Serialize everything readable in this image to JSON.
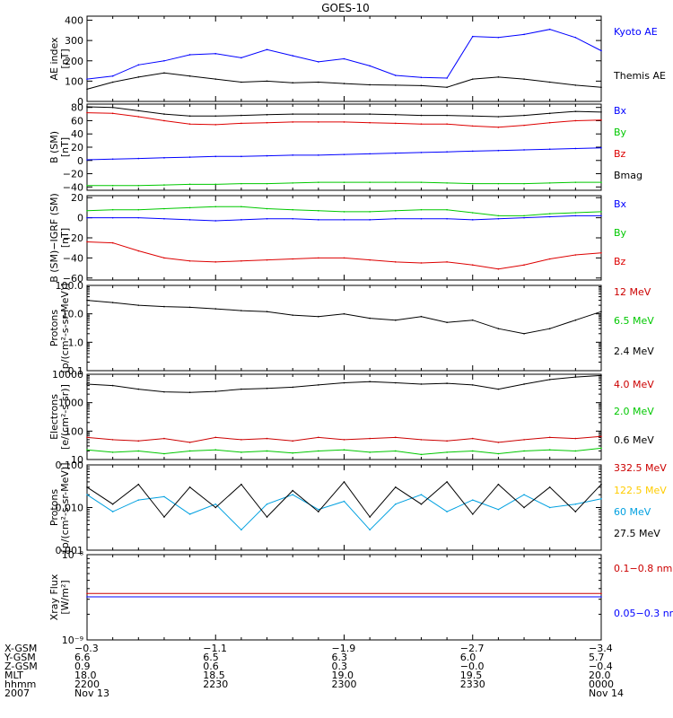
{
  "title": "GOES-10",
  "chart_data": [
    {
      "type": "line",
      "ylabel": [
        "AE index",
        "[nT]"
      ],
      "yscale": "linear",
      "ylim": [
        0,
        420
      ],
      "yticks": [
        {
          "v": 400,
          "t": "400"
        },
        {
          "v": 300,
          "t": "300"
        },
        {
          "v": 200,
          "t": "200"
        },
        {
          "v": 100,
          "t": "100"
        },
        {
          "v": 0,
          "t": "0"
        }
      ],
      "x": [
        22.0,
        22.1,
        22.2,
        22.3,
        22.4,
        22.5,
        22.6,
        22.7,
        22.8,
        22.9,
        23.0,
        23.1,
        23.2,
        23.3,
        23.4,
        23.5,
        23.6,
        23.7,
        23.8,
        23.9,
        24.0
      ],
      "series": [
        {
          "name": "Kyoto AE",
          "color": "#0000ff",
          "values": [
            110,
            125,
            180,
            200,
            230,
            235,
            215,
            255,
            225,
            195,
            210,
            175,
            128,
            118,
            115,
            320,
            315,
            330,
            355,
            315,
            250
          ]
        },
        {
          "name": "Themis AE",
          "color": "#000000",
          "values": [
            60,
            95,
            120,
            140,
            125,
            110,
            95,
            100,
            92,
            95,
            88,
            82,
            80,
            78,
            70,
            110,
            120,
            110,
            95,
            80,
            70
          ]
        }
      ]
    },
    {
      "type": "line",
      "ylabel": [
        "B (SM)",
        "[nT]"
      ],
      "yscale": "linear",
      "ylim": [
        -45,
        85
      ],
      "yticks": [
        {
          "v": 80,
          "t": "80"
        },
        {
          "v": 60,
          "t": "60"
        },
        {
          "v": 40,
          "t": "40"
        },
        {
          "v": 20,
          "t": "20"
        },
        {
          "v": 0,
          "t": "0"
        },
        {
          "v": -20,
          "t": "−20"
        },
        {
          "v": -40,
          "t": "−40"
        }
      ],
      "x": [
        22.0,
        22.1,
        22.2,
        22.3,
        22.4,
        22.5,
        22.6,
        22.7,
        22.8,
        22.9,
        23.0,
        23.1,
        23.2,
        23.3,
        23.4,
        23.5,
        23.6,
        23.7,
        23.8,
        23.9,
        24.0
      ],
      "series": [
        {
          "name": "Bx",
          "color": "#0000ff",
          "values": [
            1,
            2,
            3,
            4,
            5,
            6,
            6,
            7,
            8,
            8,
            9,
            10,
            11,
            12,
            13,
            14,
            15,
            16,
            17,
            18,
            19
          ]
        },
        {
          "name": "By",
          "color": "#00c800",
          "values": [
            -38,
            -38,
            -38,
            -37,
            -36,
            -36,
            -35,
            -35,
            -34,
            -33,
            -33,
            -33,
            -33,
            -33,
            -34,
            -35,
            -35,
            -35,
            -34,
            -33,
            -33
          ]
        },
        {
          "name": "Bz",
          "color": "#dd0000",
          "values": [
            72,
            71,
            66,
            60,
            55,
            54,
            56,
            57,
            58,
            58,
            58,
            57,
            56,
            55,
            55,
            52,
            50,
            53,
            57,
            60,
            61
          ]
        },
        {
          "name": "Bmag",
          "color": "#000000",
          "values": [
            81,
            80,
            75,
            70,
            67,
            67,
            68,
            69,
            70,
            70,
            70,
            70,
            69,
            68,
            68,
            67,
            66,
            68,
            71,
            74,
            73
          ]
        }
      ]
    },
    {
      "type": "line",
      "ylabel": [
        "B (SM)−IGRF (SM)",
        "[nT]"
      ],
      "yscale": "linear",
      "ylim": [
        -62,
        22
      ],
      "yticks": [
        {
          "v": 20,
          "t": "20"
        },
        {
          "v": 0,
          "t": "0"
        },
        {
          "v": -20,
          "t": "−20"
        },
        {
          "v": -40,
          "t": "−40"
        },
        {
          "v": -60,
          "t": "−60"
        }
      ],
      "x": [
        22.0,
        22.1,
        22.2,
        22.3,
        22.4,
        22.5,
        22.6,
        22.7,
        22.8,
        22.9,
        23.0,
        23.1,
        23.2,
        23.3,
        23.4,
        23.5,
        23.6,
        23.7,
        23.8,
        23.9,
        24.0
      ],
      "series": [
        {
          "name": "Bx",
          "color": "#0000ff",
          "values": [
            0,
            0,
            0,
            -1,
            -2,
            -3,
            -2,
            -1,
            -1,
            -2,
            -2,
            -2,
            -1,
            -1,
            -1,
            -2,
            -1,
            0,
            1,
            2,
            2
          ]
        },
        {
          "name": "By",
          "color": "#00c800",
          "values": [
            7,
            8,
            8,
            9,
            10,
            11,
            11,
            9,
            8,
            7,
            6,
            6,
            7,
            8,
            8,
            5,
            2,
            2,
            4,
            5,
            6
          ]
        },
        {
          "name": "Bz",
          "color": "#dd0000",
          "values": [
            -24,
            -25,
            -33,
            -40,
            -43,
            -44,
            -43,
            -42,
            -41,
            -40,
            -40,
            -42,
            -44,
            -45,
            -44,
            -47,
            -51,
            -47,
            -41,
            -37,
            -35
          ]
        }
      ]
    },
    {
      "type": "line",
      "ylabel": [
        "Protons",
        "[p/(cm²-s-sr-MeV)]"
      ],
      "yscale": "log",
      "ylim": [
        0.1,
        100.0
      ],
      "yticks": [
        {
          "v": 100.0,
          "t": "100.0"
        },
        {
          "v": 10.0,
          "t": "10.0"
        },
        {
          "v": 1.0,
          "t": "1.0"
        },
        {
          "v": 0.1,
          "t": "0.1"
        }
      ],
      "x": [
        22.0,
        22.1,
        22.2,
        22.3,
        22.4,
        22.5,
        22.6,
        22.7,
        22.8,
        22.9,
        23.0,
        23.1,
        23.2,
        23.3,
        23.4,
        23.5,
        23.6,
        23.7,
        23.8,
        23.9,
        24.0
      ],
      "series": [
        {
          "name": "12 MeV",
          "color": "#cc0000",
          "values": [
            null,
            null,
            null,
            null,
            null,
            null,
            null,
            null,
            null,
            null,
            null,
            null,
            null,
            null,
            null,
            null,
            null,
            null,
            null,
            null,
            null
          ]
        },
        {
          "name": "6.5 MeV",
          "color": "#00c800",
          "values": [
            null,
            null,
            null,
            null,
            null,
            null,
            null,
            null,
            null,
            null,
            null,
            null,
            null,
            null,
            null,
            null,
            null,
            null,
            null,
            null,
            null
          ]
        },
        {
          "name": "2.4 MeV",
          "color": "#000000",
          "values": [
            30,
            25,
            20,
            18,
            17,
            15,
            13,
            12,
            9,
            8,
            10,
            7,
            6,
            8,
            5,
            6,
            3,
            2,
            3,
            6,
            12
          ]
        }
      ]
    },
    {
      "type": "line",
      "ylabel": [
        "Electrons",
        "[e/(cm²-s-sr)]"
      ],
      "yscale": "log",
      "ylim": [
        10,
        10000
      ],
      "yticks": [
        {
          "v": 10000,
          "t": "10000"
        },
        {
          "v": 1000,
          "t": "1000"
        },
        {
          "v": 100,
          "t": "100"
        },
        {
          "v": 10,
          "t": "10"
        }
      ],
      "x": [
        22.0,
        22.1,
        22.2,
        22.3,
        22.4,
        22.5,
        22.6,
        22.7,
        22.8,
        22.9,
        23.0,
        23.1,
        23.2,
        23.3,
        23.4,
        23.5,
        23.6,
        23.7,
        23.8,
        23.9,
        24.0
      ],
      "series": [
        {
          "name": "4.0 MeV",
          "color": "#cc0000",
          "values": [
            60,
            50,
            45,
            55,
            40,
            60,
            50,
            55,
            45,
            60,
            50,
            55,
            60,
            50,
            45,
            55,
            40,
            50,
            60,
            55,
            65
          ]
        },
        {
          "name": "2.0 MeV",
          "color": "#00c800",
          "values": [
            22,
            18,
            20,
            16,
            20,
            22,
            18,
            20,
            17,
            20,
            22,
            18,
            20,
            15,
            18,
            20,
            16,
            20,
            22,
            20,
            25
          ]
        },
        {
          "name": "0.6 MeV",
          "color": "#000000",
          "values": [
            4500,
            4000,
            3000,
            2400,
            2300,
            2500,
            3000,
            3200,
            3500,
            4200,
            5000,
            5500,
            5000,
            4500,
            4800,
            4200,
            3000,
            4500,
            6500,
            8000,
            9000
          ]
        }
      ]
    },
    {
      "type": "line",
      "ylabel": [
        "Protons",
        "[p/(cm²-s-sr-MeV)]"
      ],
      "yscale": "log",
      "ylim": [
        0.001,
        0.1
      ],
      "yticks": [
        {
          "v": 0.1,
          "t": "0.100"
        },
        {
          "v": 0.01,
          "t": "0.010"
        },
        {
          "v": 0.001,
          "t": "0.001"
        }
      ],
      "x": [
        22.0,
        22.1,
        22.2,
        22.3,
        22.4,
        22.5,
        22.6,
        22.7,
        22.8,
        22.9,
        23.0,
        23.1,
        23.2,
        23.3,
        23.4,
        23.5,
        23.6,
        23.7,
        23.8,
        23.9,
        24.0
      ],
      "series": [
        {
          "name": "332.5 MeV",
          "color": "#cc0000",
          "values": [
            null,
            null,
            null,
            null,
            null,
            null,
            null,
            null,
            null,
            null,
            null,
            null,
            null,
            null,
            null,
            null,
            null,
            null,
            null,
            null,
            null
          ]
        },
        {
          "name": "122.5 MeV",
          "color": "#ffcc00",
          "values": [
            null,
            null,
            null,
            null,
            null,
            null,
            null,
            null,
            null,
            null,
            null,
            null,
            null,
            null,
            null,
            null,
            null,
            null,
            null,
            null,
            null
          ]
        },
        {
          "name": "60 MeV",
          "color": "#00a0e0",
          "values": [
            0.02,
            0.008,
            0.015,
            0.018,
            0.007,
            0.012,
            0.003,
            0.012,
            0.02,
            0.009,
            0.014,
            0.003,
            0.012,
            0.02,
            0.008,
            0.015,
            0.009,
            0.02,
            0.01,
            0.012,
            0.016
          ]
        },
        {
          "name": "27.5 MeV",
          "color": "#000000",
          "values": [
            0.03,
            0.012,
            0.035,
            0.006,
            0.03,
            0.01,
            0.035,
            0.006,
            0.025,
            0.008,
            0.04,
            0.006,
            0.03,
            0.012,
            0.04,
            0.007,
            0.035,
            0.01,
            0.03,
            0.008,
            0.035
          ]
        }
      ]
    },
    {
      "type": "line",
      "ylabel": [
        "Xray Flux",
        "[W/m²]"
      ],
      "yscale": "log",
      "ylim": [
        1e-09,
        1e-08
      ],
      "yticks": [
        {
          "v": 1e-08,
          "t": "10⁻⁸"
        },
        {
          "v": 1e-09,
          "t": "10⁻⁹"
        }
      ],
      "x": [
        22.0,
        24.0
      ],
      "series": [
        {
          "name": "0.1−0.8 nm",
          "color": "#cc0000",
          "values": [
            3.5e-09,
            3.5e-09
          ]
        },
        {
          "name": "0.05−0.3 nm",
          "color": "#0000ff",
          "values": [
            3.2e-09,
            3.2e-09
          ]
        }
      ]
    }
  ],
  "x_ticks": [
    {
      "x": 22.0,
      "xgsm": "−0.3",
      "ygsm": "6.6",
      "zgsm": "0.9",
      "mlt": "18.0",
      "hhmm": "2200",
      "date": "Nov 13"
    },
    {
      "x": 22.5,
      "xgsm": "−1.1",
      "ygsm": "6.5",
      "zgsm": "0.6",
      "mlt": "18.5",
      "hhmm": "2230",
      "date": ""
    },
    {
      "x": 23.0,
      "xgsm": "−1.9",
      "ygsm": "6.3",
      "zgsm": "0.3",
      "mlt": "19.0",
      "hhmm": "2300",
      "date": ""
    },
    {
      "x": 23.5,
      "xgsm": "−2.7",
      "ygsm": "6.0",
      "zgsm": "−0.0",
      "mlt": "19.5",
      "hhmm": "2330",
      "date": ""
    },
    {
      "x": 24.0,
      "xgsm": "−3.4",
      "ygsm": "5.7",
      "zgsm": "−0.4",
      "mlt": "20.0",
      "hhmm": "0000",
      "date": "Nov 14"
    }
  ],
  "row_labels": [
    "X-GSM",
    "Y-GSM",
    "Z-GSM",
    "MLT",
    "hhmm",
    "2007"
  ]
}
